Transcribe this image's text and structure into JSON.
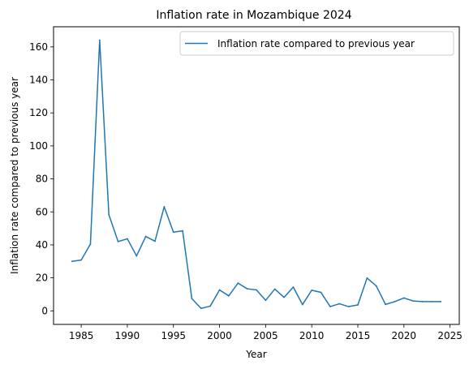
{
  "chart_data": {
    "type": "line",
    "title": "Inflation rate in Mozambique 2024",
    "xlabel": "Year",
    "ylabel": "Inflation rate compared to previous year",
    "xlim": [
      1982,
      2026
    ],
    "ylim": [
      -8.2,
      172.2
    ],
    "xticks": [
      1985,
      1990,
      1995,
      2000,
      2005,
      2010,
      2015,
      2020,
      2025
    ],
    "yticks": [
      0,
      20,
      40,
      60,
      80,
      100,
      120,
      140,
      160
    ],
    "grid": false,
    "legend_position": "upper right",
    "series": [
      {
        "name": "Inflation rate compared to previous year",
        "color": "#1f77b4",
        "x": [
          1984,
          1985,
          1986,
          1987,
          1988,
          1989,
          1990,
          1991,
          1992,
          1993,
          1994,
          1995,
          1996,
          1997,
          1998,
          1999,
          2000,
          2001,
          2002,
          2003,
          2004,
          2005,
          2006,
          2007,
          2008,
          2009,
          2010,
          2011,
          2012,
          2013,
          2014,
          2015,
          2016,
          2017,
          2018,
          2019,
          2020,
          2021,
          2022,
          2023,
          2024
        ],
        "y": [
          30.0,
          30.8,
          40.5,
          164.1,
          58.3,
          42.0,
          43.7,
          33.3,
          45.1,
          42.2,
          63.1,
          47.7,
          48.5,
          7.4,
          1.5,
          2.9,
          12.7,
          9.1,
          16.8,
          13.4,
          12.7,
          6.4,
          13.2,
          8.2,
          14.4,
          3.8,
          12.5,
          11.2,
          2.6,
          4.3,
          2.6,
          3.6,
          19.9,
          15.1,
          3.9,
          5.6,
          7.8,
          6.0,
          5.6,
          5.6,
          5.6
        ]
      }
    ]
  }
}
